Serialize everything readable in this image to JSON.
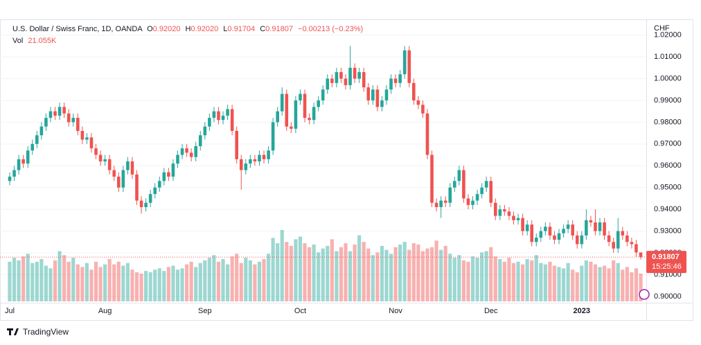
{
  "chart_data": {
    "type": "candlestick",
    "legend": {
      "symbol": "U.S. Dollar / Swiss Franc, 1D, OANDA",
      "items": [
        {
          "key": "O",
          "value": "0.92020"
        },
        {
          "key": "H",
          "value": "0.92020"
        },
        {
          "key": "L",
          "value": "0.91704"
        },
        {
          "key": "C",
          "value": "0.91807"
        }
      ],
      "change": "−0.00213 (−0.23%)",
      "volume_key": "Vol",
      "volume_value": "21.055K"
    },
    "currency": "CHF",
    "price_tag": {
      "value": "0.91807",
      "countdown": "15:25:46"
    },
    "branding": "TradingView",
    "up_color": "#26a69a",
    "down_color": "#ef5350",
    "grid": true,
    "categories": [
      "Jul",
      null,
      null,
      null,
      null,
      null,
      null,
      null,
      null,
      null,
      null,
      null,
      null,
      null,
      null,
      null,
      null,
      null,
      null,
      null,
      null,
      "Aug",
      null,
      null,
      null,
      null,
      null,
      null,
      null,
      null,
      null,
      null,
      null,
      null,
      null,
      null,
      null,
      null,
      null,
      null,
      null,
      null,
      null,
      "Sep",
      null,
      null,
      null,
      null,
      null,
      null,
      null,
      null,
      null,
      null,
      null,
      null,
      null,
      null,
      null,
      null,
      null,
      null,
      null,
      null,
      "Oct",
      null,
      null,
      null,
      null,
      null,
      null,
      null,
      null,
      null,
      null,
      null,
      null,
      null,
      null,
      null,
      null,
      null,
      null,
      null,
      null,
      "Nov",
      null,
      null,
      null,
      null,
      null,
      null,
      null,
      null,
      null,
      null,
      null,
      null,
      null,
      null,
      null,
      null,
      null,
      null,
      null,
      null,
      "Dec",
      null,
      null,
      null,
      null,
      null,
      null,
      null,
      null,
      null,
      null,
      null,
      null,
      null,
      null,
      null,
      null,
      null,
      null,
      null,
      "2023",
      null,
      null,
      null,
      null,
      null,
      null,
      null,
      null,
      null,
      null,
      null,
      null,
      null
    ],
    "open": [
      0.953,
      0.955,
      0.958,
      0.963,
      0.961,
      0.967,
      0.97,
      0.974,
      0.978,
      0.982,
      0.985,
      0.983,
      0.987,
      0.984,
      0.98,
      0.982,
      0.976,
      0.972,
      0.973,
      0.968,
      0.965,
      0.962,
      0.963,
      0.958,
      0.955,
      0.95,
      0.958,
      0.962,
      0.956,
      0.944,
      0.941,
      0.943,
      0.947,
      0.95,
      0.953,
      0.957,
      0.955,
      0.961,
      0.965,
      0.968,
      0.966,
      0.964,
      0.969,
      0.974,
      0.978,
      0.982,
      0.985,
      0.981,
      0.983,
      0.986,
      0.976,
      0.963,
      0.958,
      0.961,
      0.963,
      0.962,
      0.965,
      0.963,
      0.967,
      0.98,
      0.985,
      0.993,
      0.978,
      0.977,
      0.99,
      0.993,
      0.982,
      0.981,
      0.987,
      0.99,
      0.995,
      1.0,
      0.998,
      1.003,
      1.0,
      0.997,
      1.005,
      1.0,
      1.003,
      0.996,
      0.99,
      0.995,
      0.987,
      0.99,
      0.995,
      1.0,
      0.998,
      1.002,
      1.013,
      0.998,
      0.99,
      0.988,
      0.984,
      0.965,
      0.943,
      0.941,
      0.944,
      0.943,
      0.95,
      0.953,
      0.958,
      0.945,
      0.942,
      0.944,
      0.947,
      0.95,
      0.953,
      0.943,
      0.937,
      0.94,
      0.939,
      0.937,
      0.935,
      0.936,
      0.93,
      0.933,
      0.925,
      0.927,
      0.93,
      0.932,
      0.928,
      0.926,
      0.929,
      0.931,
      0.933,
      0.928,
      0.924,
      0.928,
      0.935,
      0.934,
      0.93,
      0.934,
      0.928,
      0.925,
      0.922,
      0.93,
      0.928,
      0.925,
      0.924,
      0.9202
    ],
    "high": [
      0.957,
      0.96,
      0.965,
      0.965,
      0.969,
      0.972,
      0.976,
      0.98,
      0.984,
      0.987,
      0.987,
      0.989,
      0.989,
      0.986,
      0.984,
      0.984,
      0.978,
      0.975,
      0.975,
      0.97,
      0.967,
      0.965,
      0.965,
      0.96,
      0.957,
      0.96,
      0.964,
      0.964,
      0.958,
      0.946,
      0.945,
      0.949,
      0.952,
      0.955,
      0.959,
      0.959,
      0.963,
      0.967,
      0.97,
      0.97,
      0.968,
      0.971,
      0.976,
      0.98,
      0.984,
      0.987,
      0.987,
      0.985,
      0.988,
      0.988,
      0.978,
      0.965,
      0.963,
      0.965,
      0.965,
      0.967,
      0.967,
      0.969,
      0.982,
      0.987,
      0.996,
      0.995,
      0.98,
      0.992,
      0.995,
      0.995,
      0.984,
      0.989,
      0.992,
      0.997,
      1.002,
      1.002,
      1.005,
      1.005,
      1.002,
      1.015,
      1.007,
      1.005,
      1.005,
      0.998,
      0.997,
      0.997,
      0.992,
      0.997,
      1.002,
      1.002,
      1.004,
      1.015,
      1.015,
      1.0,
      0.992,
      0.99,
      0.986,
      0.967,
      0.945,
      0.946,
      0.946,
      0.952,
      0.955,
      0.96,
      0.96,
      0.947,
      0.946,
      0.949,
      0.952,
      0.955,
      0.955,
      0.945,
      0.942,
      0.942,
      0.941,
      0.939,
      0.938,
      0.938,
      0.935,
      0.935,
      0.929,
      0.932,
      0.934,
      0.934,
      0.93,
      0.931,
      0.933,
      0.935,
      0.935,
      0.93,
      0.93,
      0.94,
      0.937,
      0.94,
      0.936,
      0.936,
      0.93,
      0.927,
      0.936,
      0.932,
      0.93,
      0.927,
      0.926,
      0.9202
    ],
    "low": [
      0.951,
      0.953,
      0.956,
      0.959,
      0.959,
      0.965,
      0.968,
      0.972,
      0.976,
      0.98,
      0.981,
      0.981,
      0.982,
      0.978,
      0.978,
      0.974,
      0.97,
      0.97,
      0.966,
      0.963,
      0.96,
      0.96,
      0.956,
      0.953,
      0.948,
      0.948,
      0.956,
      0.954,
      0.942,
      0.938,
      0.939,
      0.941,
      0.945,
      0.948,
      0.951,
      0.953,
      0.953,
      0.959,
      0.963,
      0.964,
      0.962,
      0.962,
      0.967,
      0.972,
      0.976,
      0.98,
      0.979,
      0.979,
      0.981,
      0.974,
      0.961,
      0.949,
      0.956,
      0.959,
      0.96,
      0.96,
      0.961,
      0.961,
      0.965,
      0.978,
      0.983,
      0.976,
      0.975,
      0.975,
      0.988,
      0.98,
      0.979,
      0.979,
      0.985,
      0.988,
      0.993,
      0.996,
      0.996,
      0.998,
      0.995,
      0.995,
      0.998,
      0.998,
      0.994,
      0.988,
      0.988,
      0.985,
      0.985,
      0.988,
      0.993,
      0.996,
      0.996,
      1.0,
      0.996,
      0.988,
      0.986,
      0.982,
      0.963,
      0.941,
      0.939,
      0.936,
      0.941,
      0.941,
      0.948,
      0.951,
      0.943,
      0.94,
      0.94,
      0.942,
      0.945,
      0.948,
      0.941,
      0.935,
      0.935,
      0.937,
      0.935,
      0.933,
      0.933,
      0.928,
      0.928,
      0.923,
      0.923,
      0.925,
      0.928,
      0.926,
      0.924,
      0.924,
      0.927,
      0.929,
      0.926,
      0.922,
      0.922,
      0.926,
      0.932,
      0.928,
      0.928,
      0.926,
      0.923,
      0.92,
      0.92,
      0.926,
      0.923,
      0.922,
      0.918,
      0.91704
    ],
    "close": [
      0.955,
      0.958,
      0.963,
      0.961,
      0.967,
      0.97,
      0.974,
      0.978,
      0.982,
      0.985,
      0.983,
      0.987,
      0.984,
      0.98,
      0.982,
      0.976,
      0.972,
      0.973,
      0.968,
      0.965,
      0.962,
      0.963,
      0.958,
      0.955,
      0.95,
      0.958,
      0.962,
      0.956,
      0.944,
      0.941,
      0.943,
      0.947,
      0.95,
      0.953,
      0.957,
      0.955,
      0.961,
      0.965,
      0.968,
      0.966,
      0.964,
      0.969,
      0.974,
      0.978,
      0.982,
      0.985,
      0.981,
      0.983,
      0.986,
      0.976,
      0.963,
      0.958,
      0.961,
      0.963,
      0.962,
      0.965,
      0.963,
      0.967,
      0.98,
      0.985,
      0.993,
      0.978,
      0.977,
      0.99,
      0.993,
      0.982,
      0.981,
      0.987,
      0.99,
      0.995,
      1.0,
      0.998,
      1.003,
      1.0,
      0.997,
      1.005,
      1.0,
      1.003,
      0.996,
      0.99,
      0.995,
      0.987,
      0.99,
      0.995,
      1.0,
      0.998,
      1.002,
      1.013,
      0.998,
      0.99,
      0.988,
      0.984,
      0.965,
      0.943,
      0.941,
      0.944,
      0.943,
      0.95,
      0.953,
      0.958,
      0.945,
      0.942,
      0.944,
      0.947,
      0.95,
      0.953,
      0.943,
      0.937,
      0.94,
      0.939,
      0.937,
      0.935,
      0.936,
      0.93,
      0.933,
      0.925,
      0.927,
      0.93,
      0.932,
      0.928,
      0.926,
      0.929,
      0.931,
      0.933,
      0.928,
      0.924,
      0.928,
      0.935,
      0.934,
      0.93,
      0.934,
      0.928,
      0.925,
      0.922,
      0.93,
      0.928,
      0.925,
      0.924,
      0.9202,
      0.91807
    ],
    "volume": [
      30000,
      33000,
      31000,
      34000,
      36000,
      29000,
      30000,
      32000,
      27000,
      25000,
      31000,
      38000,
      35000,
      30000,
      33000,
      28000,
      26000,
      29000,
      24000,
      30000,
      26000,
      28000,
      32000,
      28000,
      30000,
      27000,
      29000,
      24000,
      22000,
      21000,
      23000,
      22000,
      24000,
      25000,
      23000,
      26000,
      27000,
      24000,
      25000,
      28000,
      30000,
      26000,
      29000,
      31000,
      33000,
      35000,
      30000,
      32000,
      28000,
      34000,
      36000,
      29000,
      33000,
      31000,
      28000,
      30000,
      32000,
      36000,
      48000,
      44000,
      54000,
      45000,
      42000,
      47000,
      49000,
      44000,
      41000,
      43000,
      37000,
      40000,
      42000,
      47000,
      38000,
      41000,
      44000,
      38000,
      43000,
      50000,
      45000,
      40000,
      35000,
      37000,
      42000,
      39000,
      36000,
      41000,
      43000,
      45000,
      39000,
      44000,
      43000,
      38000,
      40000,
      41000,
      46000,
      39000,
      42000,
      36000,
      33000,
      35000,
      31000,
      30000,
      34000,
      33000,
      37000,
      38000,
      41000,
      34000,
      32000,
      30000,
      33000,
      29000,
      30000,
      28000,
      32000,
      31000,
      35000,
      29000,
      28000,
      30000,
      27000,
      26000,
      25000,
      29000,
      24000,
      22000,
      27000,
      31000,
      30000,
      28000,
      26000,
      27000,
      25000,
      31000,
      29000,
      24000,
      26000,
      22000,
      25000,
      21055
    ],
    "ylim": [
      0.8971,
      1.0272
    ],
    "yticks": [
      {
        "value": 0.9,
        "label": "0.90000"
      },
      {
        "value": 0.91,
        "label": "0.91000"
      },
      {
        "value": 0.92,
        "label": "0.92000"
      },
      {
        "value": 0.93,
        "label": "0.93000"
      },
      {
        "value": 0.94,
        "label": "0.94000"
      },
      {
        "value": 0.95,
        "label": "0.95000"
      },
      {
        "value": 0.96,
        "label": "0.96000"
      },
      {
        "value": 0.97,
        "label": "0.97000"
      },
      {
        "value": 0.98,
        "label": "0.98000"
      },
      {
        "value": 0.99,
        "label": "0.99000"
      },
      {
        "value": 1.0,
        "label": "1.00000"
      },
      {
        "value": 1.01,
        "label": "1.01000"
      },
      {
        "value": 1.02,
        "label": "1.02000"
      }
    ]
  }
}
